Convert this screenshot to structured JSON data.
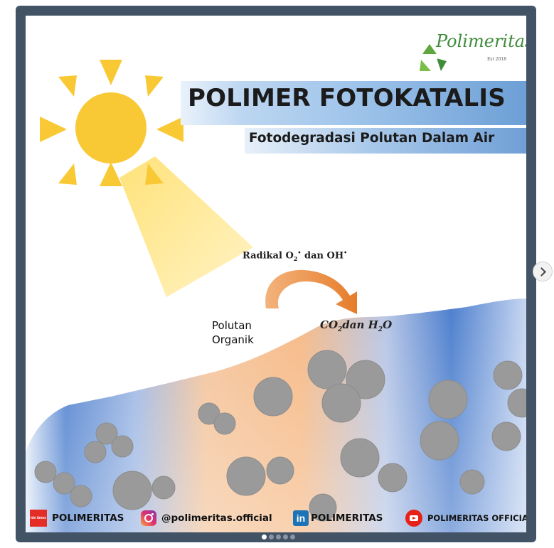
{
  "post": {
    "logo_text": "Polimeritas",
    "logo_est": "Est 2018",
    "title": "POLIMER FOTOKATALIS",
    "subtitle": "Fotodegradasi Polutan Dalam Air",
    "radical_prefix": "Radikal O",
    "radical_sub": "2",
    "radical_mid": " dan OH",
    "polutan_line1": "Polutan",
    "polutan_line2": "Organik",
    "product_a": "CO",
    "product_a_sub": "2",
    "product_mid": "dan H",
    "product_b_sub": "2",
    "product_end": "O"
  },
  "social": {
    "idn_icon_text": "idn times",
    "idn_label": "POLIMERITAS",
    "instagram_label": "@polimeritas.official",
    "linkedin_icon_text": "in",
    "linkedin_label": "POLIMERITAS",
    "youtube_label": "POLIMERITAS OFFICIAL"
  },
  "carousel": {
    "slide_count": 5,
    "active_index": 0,
    "next_icon": "chevron-right-icon"
  },
  "colors": {
    "frame": "#435366",
    "sun": "#f9c935",
    "arrow": "#e8893a",
    "particle": "#999999",
    "water_blue": "#3f74c8",
    "water_orange": "#f5ba87"
  }
}
